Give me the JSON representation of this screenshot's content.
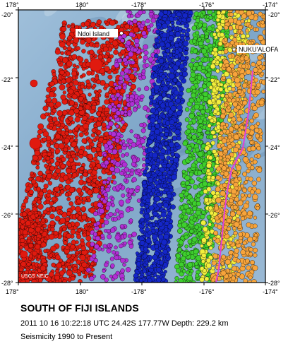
{
  "map": {
    "region_title": "SOUTH OF FIJI ISLANDS",
    "event_line": "2011 10 16 10:22:18 UTC 24.42S 177.77W Depth: 229.2 km",
    "seismicity_line": "Seismicity 1990 to Present",
    "credit": "USGS NEIC",
    "place_labels": [
      {
        "text": "Ndoi Island",
        "lon": 180.9,
        "lat": -20.65
      },
      {
        "text": "NUKU'ALOFA",
        "lon": -175.2,
        "lat": -21.13
      }
    ],
    "lon_ticks_top": [
      "178°",
      "180°",
      "-178°",
      "-176°",
      "-174°"
    ],
    "lon_ticks_bottom": [
      "178°",
      "180°",
      "-178°",
      "-176°",
      "-174°"
    ],
    "lat_ticks_left": [
      "-20°",
      "-22°",
      "-24°",
      "-26°",
      "-28°"
    ],
    "lat_ticks_right": [
      "-20°",
      "-22°",
      "-24°",
      "-26°",
      "-28°"
    ],
    "extent": {
      "lon_min": 178,
      "lon_max": 186,
      "lat_min": -28,
      "lat_max": -20
    },
    "depth_colors": {
      "shallow_orange": "#f7a43b",
      "yellow": "#f2ee3c",
      "green": "#3ecf2e",
      "blue": "#1426c8",
      "purple": "#b12fd4",
      "deep_red": "#e01a0f"
    },
    "ocean_color": "#8fb2cf",
    "plate_boundary_color": "#e040d8"
  }
}
